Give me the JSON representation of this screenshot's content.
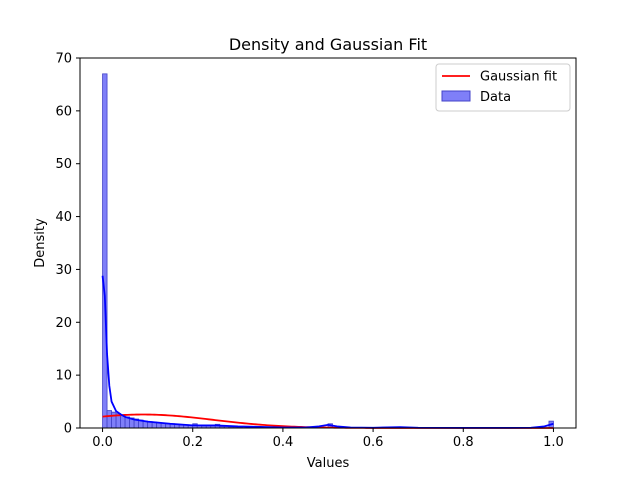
{
  "chart_data": {
    "type": "bar",
    "title": "Density and Gaussian Fit",
    "xlabel": "Values",
    "ylabel": "Density",
    "xlim": [
      -0.05,
      1.05
    ],
    "ylim": [
      0,
      70
    ],
    "xticks": [
      0.0,
      0.2,
      0.4,
      0.6,
      0.8,
      1.0
    ],
    "xtick_labels": [
      "0.0",
      "0.2",
      "0.4",
      "0.6",
      "0.8",
      "1.0"
    ],
    "yticks": [
      0,
      10,
      20,
      30,
      40,
      50,
      60,
      70
    ],
    "ytick_labels": [
      "0",
      "10",
      "20",
      "30",
      "40",
      "50",
      "60",
      "70"
    ],
    "grid": false,
    "legend_position": "top-right",
    "colors": {
      "bar_fill": "#7f7ff8",
      "bar_edge": "#4343c8",
      "kde": "#0000ff",
      "gaussian": "#ff0000"
    },
    "histogram": {
      "name": "Data",
      "bin_width": 0.01,
      "bins": [
        {
          "x": 0.0,
          "density": 67.0
        },
        {
          "x": 0.01,
          "density": 3.3
        },
        {
          "x": 0.02,
          "density": 3.0
        },
        {
          "x": 0.03,
          "density": 2.7
        },
        {
          "x": 0.04,
          "density": 2.4
        },
        {
          "x": 0.05,
          "density": 2.1
        },
        {
          "x": 0.06,
          "density": 1.9
        },
        {
          "x": 0.07,
          "density": 1.7
        },
        {
          "x": 0.08,
          "density": 1.5
        },
        {
          "x": 0.09,
          "density": 1.3
        },
        {
          "x": 0.1,
          "density": 1.2
        },
        {
          "x": 0.11,
          "density": 1.1
        },
        {
          "x": 0.12,
          "density": 1.0
        },
        {
          "x": 0.13,
          "density": 0.9
        },
        {
          "x": 0.14,
          "density": 0.8
        },
        {
          "x": 0.15,
          "density": 0.8
        },
        {
          "x": 0.16,
          "density": 0.7
        },
        {
          "x": 0.17,
          "density": 0.6
        },
        {
          "x": 0.18,
          "density": 0.6
        },
        {
          "x": 0.19,
          "density": 0.5
        },
        {
          "x": 0.2,
          "density": 0.8
        },
        {
          "x": 0.21,
          "density": 0.5
        },
        {
          "x": 0.22,
          "density": 0.4
        },
        {
          "x": 0.23,
          "density": 0.4
        },
        {
          "x": 0.24,
          "density": 0.4
        },
        {
          "x": 0.25,
          "density": 0.7
        },
        {
          "x": 0.26,
          "density": 0.3
        },
        {
          "x": 0.27,
          "density": 0.3
        },
        {
          "x": 0.28,
          "density": 0.2
        },
        {
          "x": 0.29,
          "density": 0.2
        },
        {
          "x": 0.3,
          "density": 0.2
        },
        {
          "x": 0.33,
          "density": 0.2
        },
        {
          "x": 0.36,
          "density": 0.1
        },
        {
          "x": 0.4,
          "density": 0.1
        },
        {
          "x": 0.5,
          "density": 0.8
        },
        {
          "x": 0.66,
          "density": 0.2
        },
        {
          "x": 0.99,
          "density": 1.3
        }
      ]
    },
    "kde": {
      "x": [
        0.0,
        0.005,
        0.01,
        0.015,
        0.02,
        0.03,
        0.04,
        0.05,
        0.07,
        0.1,
        0.15,
        0.2,
        0.25,
        0.3,
        0.35,
        0.4,
        0.45,
        0.48,
        0.5,
        0.52,
        0.55,
        0.6,
        0.66,
        0.7,
        0.8,
        0.9,
        0.95,
        0.98,
        1.0
      ],
      "y": [
        28.8,
        25.0,
        14.0,
        8.0,
        5.0,
        3.2,
        2.6,
        2.1,
        1.6,
        1.2,
        0.8,
        0.5,
        0.5,
        0.3,
        0.2,
        0.1,
        0.1,
        0.3,
        0.6,
        0.3,
        0.1,
        0.05,
        0.15,
        0.05,
        0.02,
        0.02,
        0.05,
        0.3,
        0.8
      ]
    },
    "gaussian_fit": {
      "name": "Gaussian fit",
      "mean": 0.09,
      "std": 0.155,
      "peak_density": 2.55,
      "x_range": [
        0.0,
        1.0
      ]
    },
    "legend": [
      "Gaussian fit",
      "Data"
    ]
  }
}
